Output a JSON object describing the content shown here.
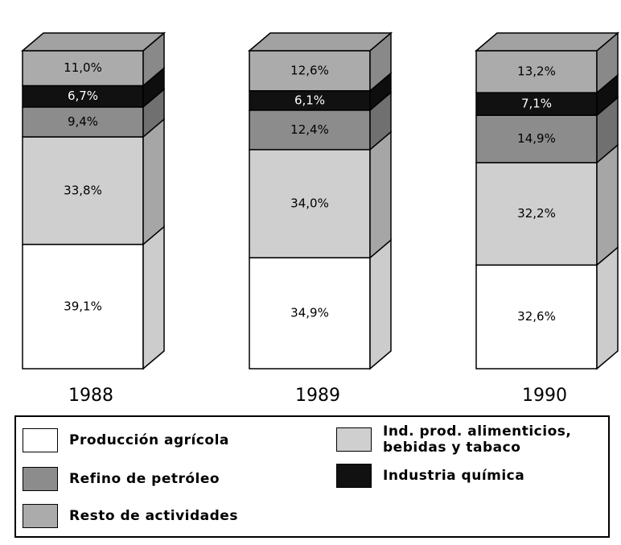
{
  "chart_data": {
    "type": "stacked-bar-3d",
    "categories": [
      "1988",
      "1989",
      "1990"
    ],
    "series": [
      {
        "name": "Producción agrícola",
        "color": "#ffffff",
        "values": [
          39.1,
          34.9,
          32.6
        ],
        "value_labels": [
          "39,1%",
          "34,9%",
          "32,6%"
        ]
      },
      {
        "name": "Ind. prod. alimenticios, bebidas y tabaco",
        "color": "#cfcfcf",
        "values": [
          33.8,
          34.0,
          32.2
        ],
        "value_labels": [
          "33,8%",
          "34,0%",
          "32,2%"
        ]
      },
      {
        "name": "Refino de petróleo",
        "color": "#8c8c8c",
        "values": [
          9.4,
          12.4,
          14.9
        ],
        "value_labels": [
          "9,4%",
          "12,4%",
          "14,9%"
        ]
      },
      {
        "name": "Industria química",
        "color": "#111111",
        "values": [
          6.7,
          6.1,
          7.1
        ],
        "value_labels": [
          "6,7%",
          "6,1%",
          "7,1%"
        ]
      },
      {
        "name": "Resto de actividades",
        "color": "#ababab",
        "values": [
          11.0,
          12.6,
          13.2
        ],
        "value_labels": [
          "11,0%",
          "12,6%",
          "13,2%"
        ]
      }
    ]
  }
}
